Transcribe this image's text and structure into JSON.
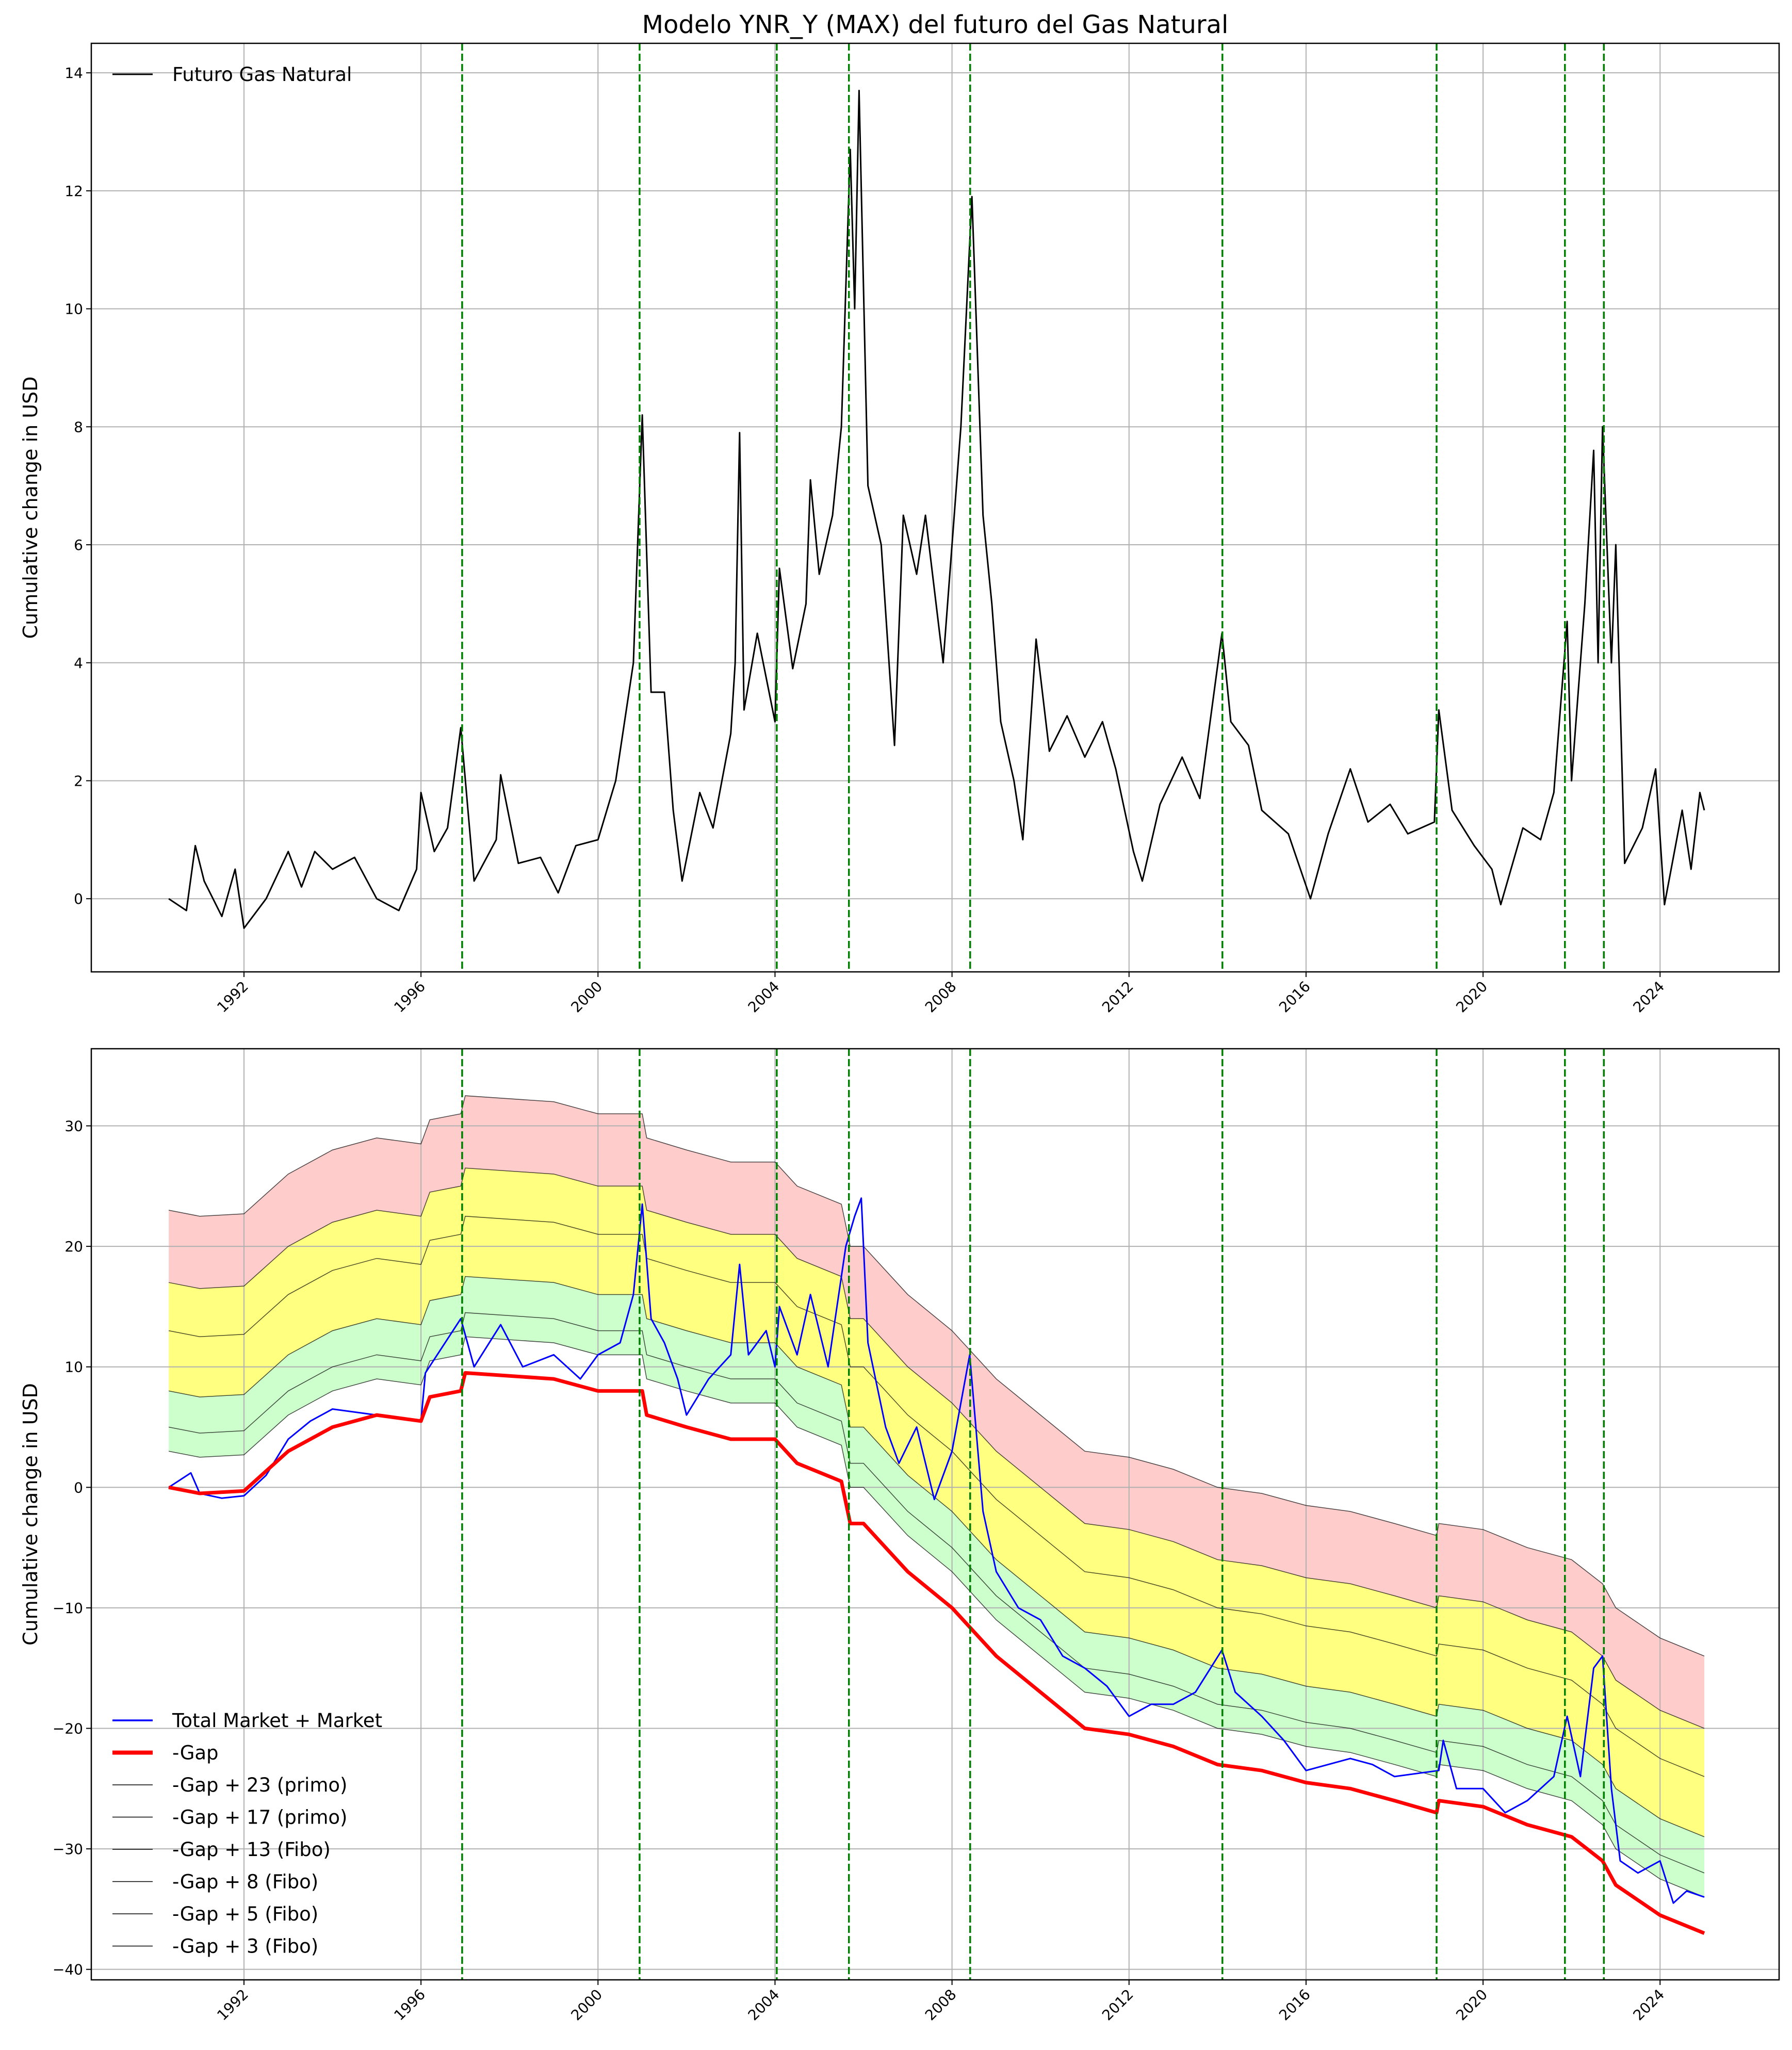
{
  "chart_data": [
    {
      "type": "line",
      "title": "Modelo YNR_Y (MAX) del futuro del Gas Natural",
      "xlabel": "",
      "ylabel": "Cumulative change in USD",
      "xlim": [
        1988.55,
        2026.69
      ],
      "ylim": [
        -1.24,
        14.5
      ],
      "xticks": [
        1992,
        1996,
        2000,
        2004,
        2008,
        2012,
        2016,
        2020,
        2024
      ],
      "yticks": [
        0,
        2,
        4,
        6,
        8,
        10,
        12,
        14
      ],
      "grid": true,
      "legend_position": "top-left",
      "vlines": [
        1996.93,
        2000.94,
        2004.04,
        2005.67,
        2008.41,
        2014.11,
        2018.95,
        2021.85,
        2022.73
      ],
      "series": [
        {
          "name": "Futuro Gas Natural",
          "color": "#000000",
          "x": [
            1990.3,
            1990.7,
            1990.9,
            1991.1,
            1991.5,
            1991.8,
            1992.0,
            1992.5,
            1993.0,
            1993.3,
            1993.6,
            1994.0,
            1994.5,
            1995.0,
            1995.5,
            1995.9,
            1996.0,
            1996.3,
            1996.6,
            1996.9,
            1997.2,
            1997.7,
            1997.8,
            1998.2,
            1998.7,
            1999.1,
            1999.5,
            2000.0,
            2000.4,
            2000.8,
            2001.0,
            2001.2,
            2001.5,
            2001.7,
            2001.9,
            2002.3,
            2002.6,
            2003.0,
            2003.1,
            2003.2,
            2003.3,
            2003.6,
            2004.0,
            2004.1,
            2004.4,
            2004.7,
            2004.8,
            2005.0,
            2005.3,
            2005.5,
            2005.7,
            2005.8,
            2005.9,
            2006.1,
            2006.4,
            2006.7,
            2006.9,
            2007.2,
            2007.4,
            2007.8,
            2008.0,
            2008.2,
            2008.45,
            2008.7,
            2008.9,
            2009.1,
            2009.4,
            2009.6,
            2009.9,
            2010.2,
            2010.6,
            2011.0,
            2011.4,
            2011.7,
            2012.1,
            2012.3,
            2012.7,
            2013.2,
            2013.6,
            2014.1,
            2014.3,
            2014.7,
            2015.0,
            2015.6,
            2016.1,
            2016.5,
            2017.0,
            2017.4,
            2017.9,
            2018.3,
            2018.9,
            2019.0,
            2019.3,
            2019.8,
            2020.2,
            2020.4,
            2020.9,
            2021.3,
            2021.6,
            2021.9,
            2022.0,
            2022.3,
            2022.5,
            2022.6,
            2022.7,
            2022.9,
            2023.0,
            2023.2,
            2023.6,
            2023.9,
            2024.1,
            2024.5,
            2024.7,
            2024.9,
            2025.0
          ],
          "y": [
            0,
            -0.2,
            0.9,
            0.3,
            -0.3,
            0.5,
            -0.5,
            0,
            0.8,
            0.2,
            0.8,
            0.5,
            0.7,
            0,
            -0.2,
            0.5,
            1.8,
            0.8,
            1.2,
            2.9,
            0.3,
            1.0,
            2.1,
            0.6,
            0.7,
            0.1,
            0.9,
            1.0,
            2.0,
            4.0,
            8.2,
            3.5,
            3.5,
            1.5,
            0.3,
            1.8,
            1.2,
            2.8,
            4.0,
            7.9,
            3.2,
            4.5,
            3.0,
            5.6,
            3.9,
            5.0,
            7.1,
            5.5,
            6.5,
            8.0,
            12.7,
            10.0,
            13.7,
            7.0,
            6.0,
            2.6,
            6.5,
            5.5,
            6.5,
            4.0,
            6.0,
            8.0,
            11.9,
            6.5,
            5.0,
            3.0,
            2.0,
            1.0,
            4.4,
            2.5,
            3.1,
            2.4,
            3.0,
            2.2,
            0.8,
            0.3,
            1.6,
            2.4,
            1.7,
            4.5,
            3.0,
            2.6,
            1.5,
            1.1,
            0.0,
            1.1,
            2.2,
            1.3,
            1.6,
            1.1,
            1.3,
            3.2,
            1.5,
            0.9,
            0.5,
            -0.1,
            1.2,
            1.0,
            1.8,
            4.7,
            2.0,
            5.0,
            7.6,
            4.0,
            8.0,
            4.0,
            6.0,
            0.6,
            1.2,
            2.2,
            -0.1,
            1.5,
            0.5,
            1.8,
            1.5
          ]
        }
      ]
    },
    {
      "type": "line",
      "title": "",
      "xlabel": "",
      "ylabel": "Cumulative change in USD",
      "xlim": [
        1988.55,
        2026.69
      ],
      "ylim": [
        -40.87,
        36.4
      ],
      "xticks": [
        1992,
        1996,
        2000,
        2004,
        2008,
        2012,
        2016,
        2020,
        2024
      ],
      "yticks": [
        -40,
        -30,
        -20,
        -10,
        0,
        10,
        20,
        30
      ],
      "grid": true,
      "legend_position": "bottom-left",
      "vlines": [
        1996.93,
        2000.94,
        2004.04,
        2005.67,
        2008.41,
        2014.11,
        2018.95,
        2021.85,
        2022.73
      ],
      "bands": [
        {
          "from_offset": 3,
          "to_offset": 8,
          "color": "#ccffcc"
        },
        {
          "from_offset": 8,
          "to_offset": 17,
          "color": "#ffff80"
        },
        {
          "from_offset": 17,
          "to_offset": 23,
          "color": "#ffcccc"
        }
      ],
      "series": [
        {
          "name": "Total Market + Market",
          "color": "#0000ff",
          "x": [
            1990.3,
            1990.8,
            1991.0,
            1991.5,
            1992.0,
            1992.5,
            1993.0,
            1993.5,
            1994.0,
            1995.0,
            1996.0,
            1996.1,
            1996.9,
            1997.2,
            1997.8,
            1998.3,
            1999.0,
            1999.6,
            2000.0,
            2000.5,
            2000.8,
            2001.0,
            2001.2,
            2001.5,
            2001.8,
            2002.0,
            2002.5,
            2003.0,
            2003.2,
            2003.4,
            2003.8,
            2004.0,
            2004.1,
            2004.5,
            2004.8,
            2005.2,
            2005.6,
            2005.8,
            2005.95,
            2006.1,
            2006.5,
            2006.8,
            2007.2,
            2007.6,
            2008.0,
            2008.4,
            2008.7,
            2009.0,
            2009.5,
            2010.0,
            2010.5,
            2011.0,
            2011.5,
            2012.0,
            2012.5,
            2013.0,
            2013.5,
            2014.1,
            2014.4,
            2015.0,
            2015.5,
            2016.0,
            2016.5,
            2017.0,
            2017.5,
            2018.0,
            2019.0,
            2019.1,
            2019.4,
            2020.0,
            2020.5,
            2021.0,
            2021.6,
            2021.9,
            2022.2,
            2022.5,
            2022.7,
            2022.9,
            2023.1,
            2023.5,
            2024.0,
            2024.3,
            2024.6,
            2025.0
          ],
          "y": [
            0,
            1.2,
            -0.5,
            -0.9,
            -0.7,
            1,
            4,
            5.5,
            6.5,
            6,
            5.5,
            9.5,
            14,
            10,
            13.5,
            10,
            11,
            9,
            11,
            12,
            16,
            23.5,
            14,
            12,
            9,
            6,
            9,
            11,
            18.5,
            11,
            13,
            10,
            15,
            11,
            16,
            10,
            20,
            22.5,
            24,
            12,
            5,
            2,
            5,
            -1,
            3,
            11,
            -2,
            -7,
            -10,
            -11,
            -14,
            -15,
            -16.5,
            -19,
            -18,
            -18,
            -17,
            -13.5,
            -17,
            -19,
            -21,
            -23.5,
            -23,
            -22.5,
            -23,
            -24,
            -23.5,
            -21,
            -25,
            -25,
            -27,
            -26,
            -24,
            -19,
            -24,
            -15,
            -14,
            -25,
            -31,
            -32,
            -31,
            -34.5,
            -33.5,
            -34
          ]
        },
        {
          "name": "-Gap",
          "color": "#ff0000",
          "x": [
            1990.3,
            1991.0,
            1992.0,
            1993.0,
            1994.0,
            1995.0,
            1996.0,
            1996.2,
            1996.9,
            1997.0,
            1999.0,
            2000.0,
            2001.0,
            2001.1,
            2002.0,
            2003.0,
            2004.0,
            2004.5,
            2005.5,
            2005.7,
            2006.0,
            2007.0,
            2008.0,
            2009.0,
            2010.0,
            2011.0,
            2012.0,
            2013.0,
            2014.0,
            2015.0,
            2016.0,
            2017.0,
            2018.0,
            2018.95,
            2019.0,
            2020.0,
            2021.0,
            2022.0,
            2022.7,
            2023.0,
            2024.0,
            2025.0
          ],
          "y": [
            0,
            -0.5,
            -0.3,
            3,
            5,
            6,
            5.5,
            7.5,
            8,
            9.5,
            9,
            8,
            8,
            6,
            5,
            4,
            4,
            2,
            0.5,
            -3,
            -3,
            -7,
            -10,
            -14,
            -17,
            -20,
            -20.5,
            -21.5,
            -23,
            -23.5,
            -24.5,
            -25,
            -26,
            -27,
            -26,
            -26.5,
            -28,
            -29,
            -31,
            -33,
            -35.5,
            -37
          ]
        }
      ],
      "offset_lines": [
        {
          "name": "-Gap + 23 (primo)",
          "offset": 23,
          "color": "#000000"
        },
        {
          "name": "-Gap + 17 (primo)",
          "offset": 17,
          "color": "#000000"
        },
        {
          "name": "-Gap + 13 (Fibo)",
          "offset": 13,
          "color": "#000000"
        },
        {
          "name": "-Gap + 8 (Fibo)",
          "offset": 8,
          "color": "#000000"
        },
        {
          "name": "-Gap + 5 (Fibo)",
          "offset": 5,
          "color": "#000000"
        },
        {
          "name": "-Gap + 3 (Fibo)",
          "offset": 3,
          "color": "#000000"
        }
      ]
    }
  ]
}
